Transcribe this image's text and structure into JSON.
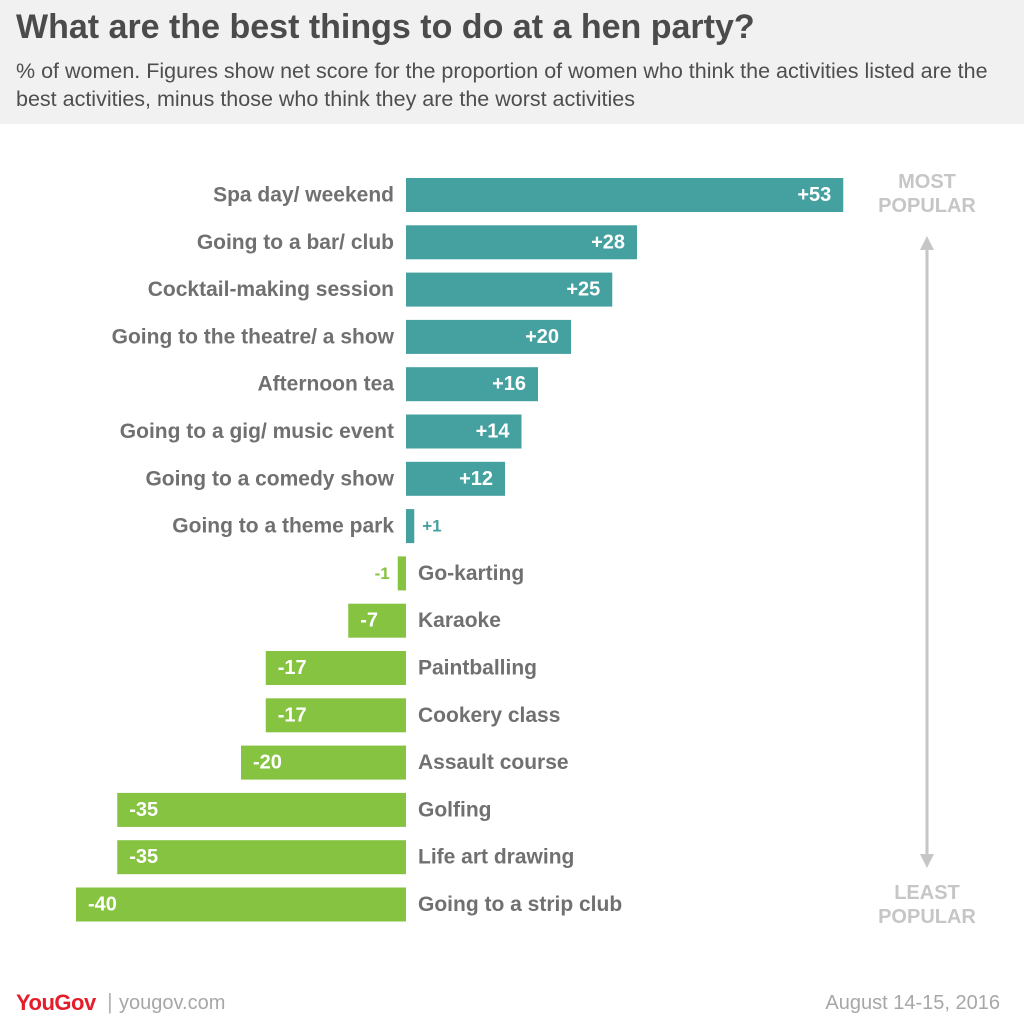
{
  "title": "What are the best things to do at a hen party?",
  "subtitle": "% of women. Figures show net score for the proportion of women who think the activities listed are the best activities, minus those who think they are the worst activities",
  "colors": {
    "positive": "#45a0a0",
    "negative": "#85c341",
    "label_text": "#707070",
    "arrow": "#c6c6c6",
    "header_bg": "#f1f1f1"
  },
  "chart_data": {
    "type": "bar",
    "orientation": "horizontal",
    "categories": [
      "Spa day/ weekend",
      "Going to a bar/ club",
      "Cocktail-making session",
      "Going to the theatre/ a show",
      "Afternoon tea",
      "Going to a gig/ music event",
      "Going to a comedy show",
      "Going to a theme park",
      "Go-karting",
      "Karaoke",
      "Paintballing",
      "Cookery class",
      "Assault course",
      "Golfing",
      "Life art drawing",
      "Going to a strip club"
    ],
    "values": [
      53,
      28,
      25,
      20,
      16,
      14,
      12,
      1,
      -1,
      -7,
      -17,
      -17,
      -20,
      -35,
      -35,
      -40
    ],
    "data_labels": [
      "+53",
      "+28",
      "+25",
      "+20",
      "+16",
      "+14",
      "+12",
      "+1",
      "-1",
      "-7",
      "-17",
      "-17",
      "-20",
      "-35",
      "-35",
      "-40"
    ],
    "xlim": [
      -40,
      53
    ],
    "grid": false,
    "legend": "none",
    "annotations": {
      "top": [
        "MOST",
        "POPULAR"
      ],
      "bottom": [
        "LEAST",
        "POPULAR"
      ]
    }
  },
  "footer": {
    "brand": "YouGov",
    "site": "yougov.com",
    "separator": "|",
    "date": "August 14-15, 2016"
  }
}
